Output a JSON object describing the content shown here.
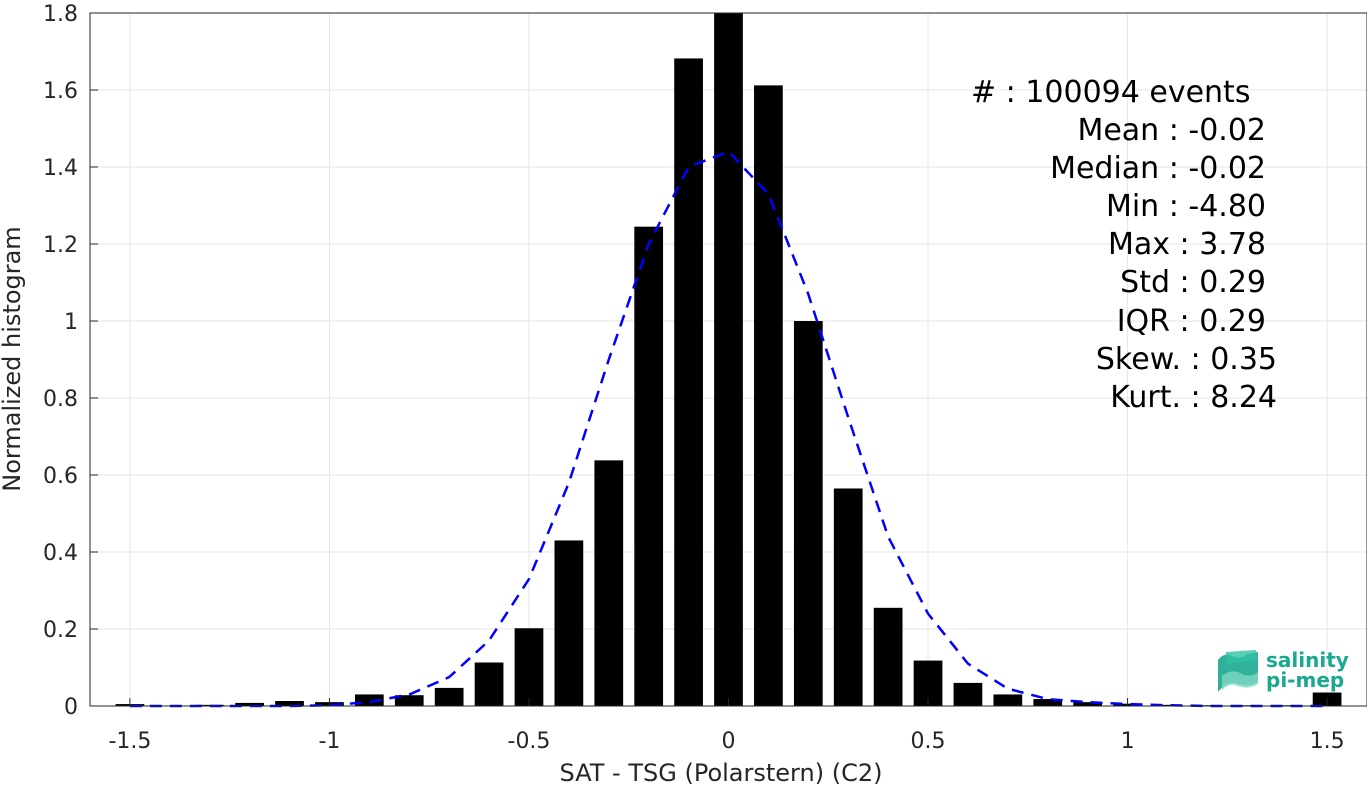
{
  "chart_data": {
    "type": "bar",
    "xlabel": "SAT - TSG (Polarstern) (C2)",
    "ylabel": "Normalized histogram",
    "xlim": [
      -1.6,
      1.6
    ],
    "ylim": [
      0,
      1.8
    ],
    "xticks": [
      -1.5,
      -1,
      -0.5,
      0,
      0.5,
      1,
      1.5
    ],
    "xtick_labels": [
      "-1.5",
      "-1",
      "-0.5",
      "0",
      "0.5",
      "1",
      "1.5"
    ],
    "yticks": [
      0,
      0.2,
      0.4,
      0.6,
      0.8,
      1,
      1.2,
      1.4,
      1.6,
      1.8
    ],
    "ytick_labels": [
      "0",
      "0.2",
      "0.4",
      "0.6",
      "0.8",
      "1",
      "1.2",
      "1.4",
      "1.6",
      "1.8"
    ],
    "grid": true,
    "bar_color": "#000000",
    "bins": [
      {
        "x": -1.5,
        "value": 0.005
      },
      {
        "x": -1.4,
        "value": 0.0
      },
      {
        "x": -1.3,
        "value": 0.003
      },
      {
        "x": -1.2,
        "value": 0.008
      },
      {
        "x": -1.1,
        "value": 0.013
      },
      {
        "x": -1.0,
        "value": 0.01
      },
      {
        "x": -0.9,
        "value": 0.03
      },
      {
        "x": -0.8,
        "value": 0.028
      },
      {
        "x": -0.7,
        "value": 0.047
      },
      {
        "x": -0.6,
        "value": 0.113
      },
      {
        "x": -0.5,
        "value": 0.202
      },
      {
        "x": -0.4,
        "value": 0.43
      },
      {
        "x": -0.3,
        "value": 0.638
      },
      {
        "x": -0.2,
        "value": 1.245
      },
      {
        "x": -0.1,
        "value": 1.682
      },
      {
        "x": 0.0,
        "value": 1.8
      },
      {
        "x": 0.1,
        "value": 1.612
      },
      {
        "x": 0.2,
        "value": 1.0
      },
      {
        "x": 0.3,
        "value": 0.565
      },
      {
        "x": 0.4,
        "value": 0.255
      },
      {
        "x": 0.5,
        "value": 0.118
      },
      {
        "x": 0.6,
        "value": 0.06
      },
      {
        "x": 0.7,
        "value": 0.03
      },
      {
        "x": 0.8,
        "value": 0.018
      },
      {
        "x": 0.9,
        "value": 0.01
      },
      {
        "x": 1.0,
        "value": 0.006
      },
      {
        "x": 1.1,
        "value": 0.003
      },
      {
        "x": 1.2,
        "value": 0.002
      },
      {
        "x": 1.3,
        "value": 0.002
      },
      {
        "x": 1.4,
        "value": 0.002
      },
      {
        "x": 1.5,
        "value": 0.035
      }
    ],
    "fit_curve": {
      "color": "#0000ff",
      "style": "dashed",
      "x": [
        -1.5,
        -1.4,
        -1.3,
        -1.2,
        -1.1,
        -1.0,
        -0.9,
        -0.8,
        -0.7,
        -0.6,
        -0.5,
        -0.4,
        -0.3,
        -0.2,
        -0.1,
        0.0,
        0.1,
        0.2,
        0.3,
        0.4,
        0.5,
        0.6,
        0.7,
        0.8,
        0.9,
        1.0,
        1.1,
        1.2,
        1.3,
        1.4,
        1.5
      ],
      "y": [
        0.0,
        0.0,
        0.0,
        0.0,
        0.0,
        0.002,
        0.01,
        0.03,
        0.075,
        0.17,
        0.33,
        0.58,
        0.9,
        1.2,
        1.4,
        1.44,
        1.33,
        1.07,
        0.75,
        0.44,
        0.24,
        0.11,
        0.045,
        0.018,
        0.01,
        0.005,
        0.002,
        0.0,
        0.0,
        0.0,
        0.0
      ]
    },
    "annotations": [
      "#  : 100094 events",
      "Mean : -0.02",
      "Median : -0.02",
      "Min : -4.80",
      "Max : 3.78",
      "Std : 0.29",
      "IQR : 0.29",
      "Skew. : 0.35",
      "Kurt. : 8.24"
    ]
  },
  "logo": {
    "line1": "salinity",
    "line2": "pi-mep",
    "color": "#1aa88e"
  }
}
